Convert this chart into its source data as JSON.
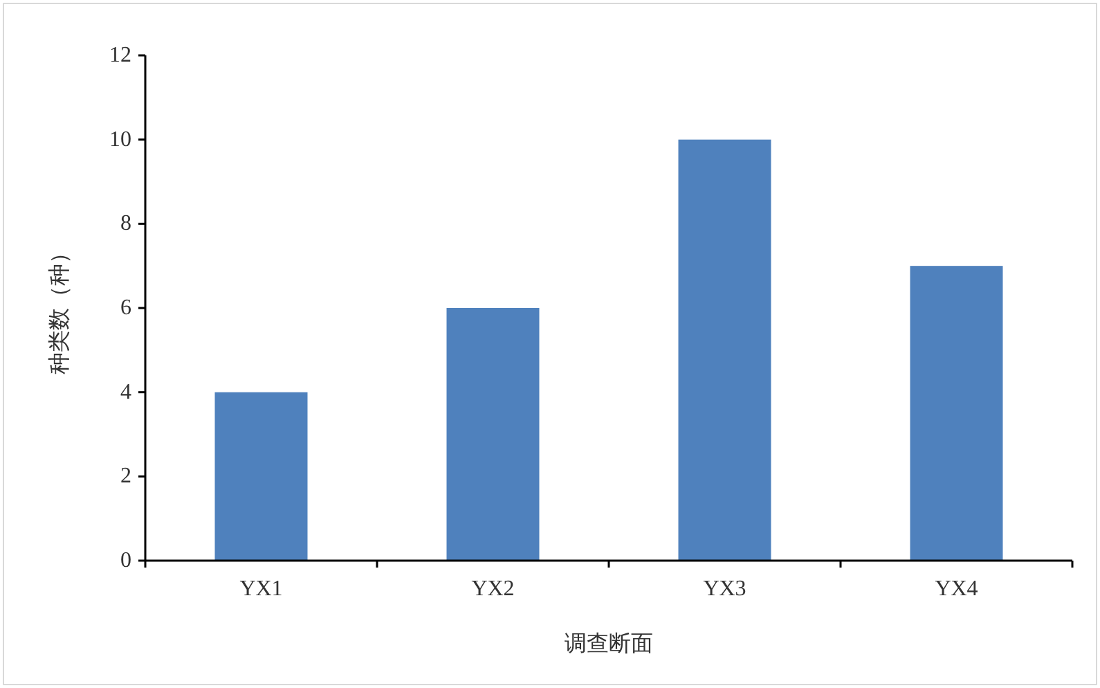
{
  "chart_data": {
    "type": "bar",
    "xlabel": "调查断面",
    "ylabel": "种类数（种）",
    "categories": [
      "YX1",
      "YX2",
      "YX3",
      "YX4"
    ],
    "values": [
      4,
      6,
      10,
      7
    ],
    "color": "#4f81bd",
    "ylim": [
      0,
      12
    ],
    "yticks": [
      0,
      2,
      4,
      6,
      8,
      10,
      12
    ],
    "grid": false
  }
}
